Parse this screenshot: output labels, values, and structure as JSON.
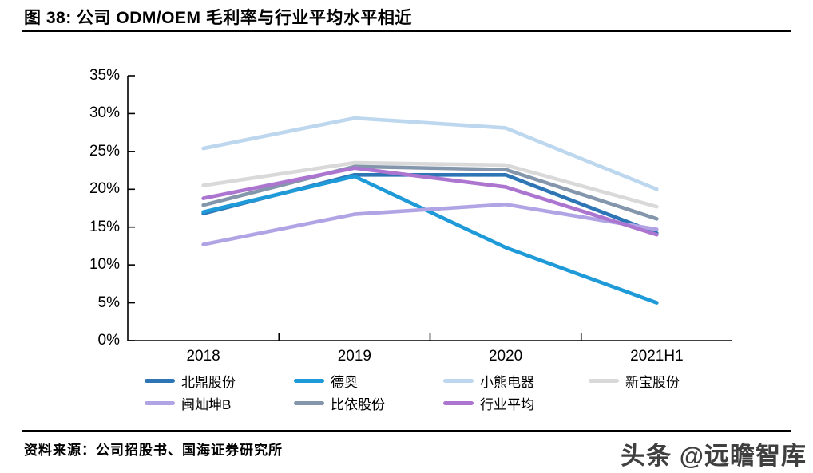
{
  "title": "图 38:  公司 ODM/OEM 毛利率与行业平均水平相近",
  "chart_data": {
    "type": "line",
    "title": "公司 ODM/OEM 毛利率与行业平均水平相近",
    "categories": [
      "2018",
      "2019",
      "2020",
      "2021H1"
    ],
    "series": [
      {
        "name": "北鼎股份",
        "color": "#2e75b6",
        "values": [
          16.8,
          21.9,
          21.9,
          14.2
        ]
      },
      {
        "name": "德奥",
        "color": "#1f9ad8",
        "values": [
          17.0,
          21.7,
          12.3,
          5.0
        ]
      },
      {
        "name": "小熊电器",
        "color": "#bdd7ee",
        "values": [
          25.4,
          29.4,
          28.1,
          20.0
        ]
      },
      {
        "name": "新宝股份",
        "color": "#d9d9d9",
        "values": [
          20.5,
          23.5,
          23.2,
          17.7
        ]
      },
      {
        "name": "闽灿坤B",
        "color": "#b1a4e5",
        "values": [
          12.7,
          16.7,
          18.0,
          14.7
        ]
      },
      {
        "name": "比依股份",
        "color": "#8496ab",
        "values": [
          17.9,
          23.0,
          22.6,
          16.1
        ]
      },
      {
        "name": "行业平均",
        "color": "#ac75cf",
        "values": [
          18.8,
          22.8,
          20.3,
          14.0
        ]
      }
    ],
    "xlabel": "",
    "ylabel": "",
    "ylim": [
      0,
      35
    ],
    "ytick_values": [
      35,
      30,
      25,
      20,
      15,
      10,
      5,
      0
    ],
    "ytick_labels": [
      "35%",
      "30%",
      "25%",
      "20%",
      "15%",
      "10%",
      "5%",
      "0%"
    ],
    "grid": false,
    "legend_position": "bottom",
    "legend_rows": [
      [
        0,
        1,
        2,
        3
      ],
      [
        4,
        5,
        6
      ]
    ]
  },
  "footer": {
    "source_label": "资料来源：公司招股书、国海证券研究所"
  },
  "watermark": {
    "text": "头条 @远瞻智库"
  }
}
